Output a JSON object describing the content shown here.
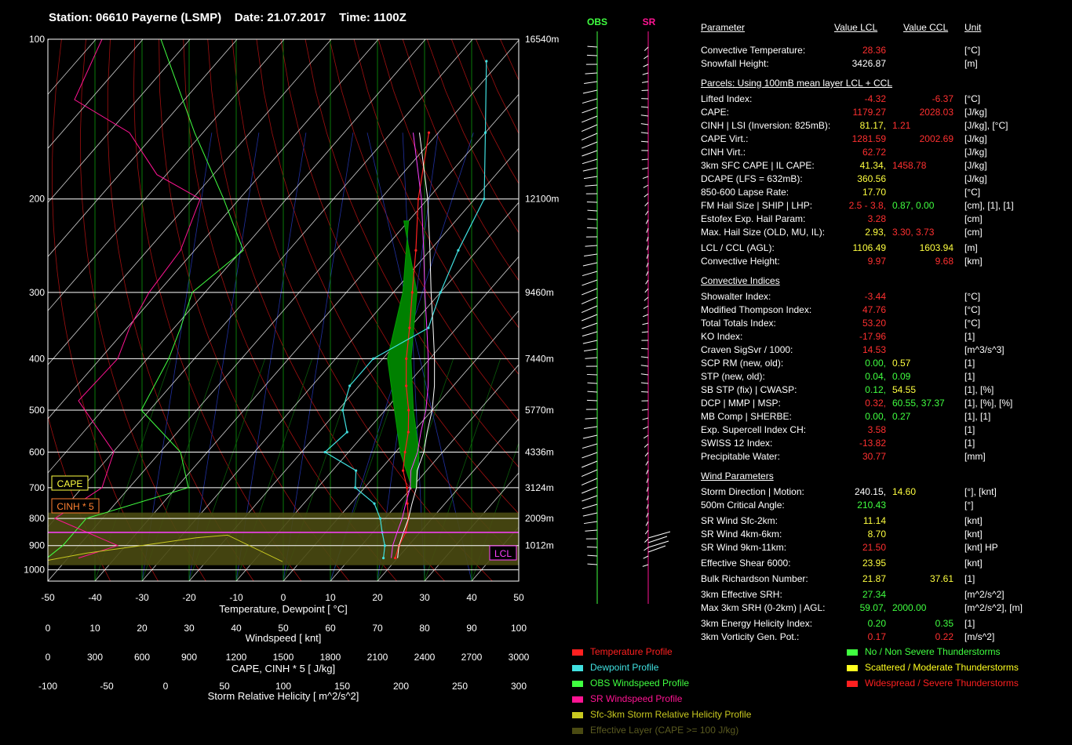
{
  "header": {
    "station": "Station: 06610 Payerne (LSMP)",
    "date": "Date: 21.07.2017",
    "time": "Time: 1100Z"
  },
  "chart_data": {
    "type": "line",
    "pressure_ticks": [
      100,
      200,
      300,
      400,
      500,
      600,
      700,
      800,
      900,
      1000
    ],
    "height_ticks": [
      "16540m",
      "12100m",
      "9460m",
      "7440m",
      "5770m",
      "4336m",
      "3124m",
      "2009m",
      "1012m"
    ],
    "height_pressures": [
      100,
      200,
      300,
      400,
      500,
      600,
      700,
      800,
      900
    ],
    "xlabel": "Temperature, Dewpoint [ °C]",
    "temp_ticks": [
      -50,
      -40,
      -30,
      -20,
      -10,
      0,
      10,
      20,
      30,
      40,
      50
    ],
    "wind_label": "Windspeed [ knt]",
    "wind_ticks": [
      0,
      10,
      20,
      30,
      40,
      50,
      60,
      70,
      80,
      90,
      100
    ],
    "cape_label": "CAPE, CINH * 5 [ J/kg]",
    "cape_ticks": [
      0,
      300,
      600,
      900,
      1200,
      1500,
      1800,
      2100,
      2400,
      2700,
      3000
    ],
    "srh_label": "Storm Relative Helicity [ m^2/s^2]",
    "srh_ticks": [
      -100,
      -50,
      0,
      50,
      100,
      150,
      200,
      250,
      300
    ],
    "box_labels": {
      "cape": "CAPE",
      "cinh": "CINH * 5",
      "lcl": "LCL"
    },
    "column_labels": {
      "obs": "OBS",
      "sr": "SR"
    },
    "series": [
      {
        "name": "Temperature Profile",
        "color": "#ff2020",
        "points": [
          [
            19.5,
            950
          ],
          [
            18,
            900
          ],
          [
            17,
            850
          ],
          [
            15,
            800
          ],
          [
            12,
            750
          ],
          [
            9,
            700
          ],
          [
            5,
            650
          ],
          [
            2,
            600
          ],
          [
            -1,
            550
          ],
          [
            -5,
            500
          ],
          [
            -10,
            450
          ],
          [
            -15,
            400
          ],
          [
            -20,
            350
          ],
          [
            -26,
            300
          ],
          [
            -33,
            250
          ],
          [
            -42,
            200
          ],
          [
            -52,
            150
          ]
        ]
      },
      {
        "name": "Dewpoint Profile",
        "color": "#40e0e0",
        "points": [
          [
            17,
            950
          ],
          [
            15,
            900
          ],
          [
            12,
            850
          ],
          [
            9,
            800
          ],
          [
            5,
            750
          ],
          [
            -2,
            700
          ],
          [
            -5,
            650
          ],
          [
            -15,
            600
          ],
          [
            -14,
            550
          ],
          [
            -19,
            500
          ],
          [
            -22,
            450
          ],
          [
            -22,
            400
          ],
          [
            -16,
            350
          ],
          [
            -20,
            300
          ],
          [
            -24,
            250
          ],
          [
            -28,
            200
          ],
          [
            -40,
            150
          ],
          [
            -53,
            110
          ]
        ]
      },
      {
        "name": "Parcel",
        "color": "#ffffff",
        "points": [
          [
            20,
            950
          ],
          [
            18,
            900
          ],
          [
            16.5,
            850
          ],
          [
            15,
            800
          ],
          [
            13,
            750
          ],
          [
            11,
            700
          ],
          [
            8,
            650
          ],
          [
            6,
            600
          ],
          [
            3,
            550
          ],
          [
            0,
            500
          ],
          [
            -4,
            450
          ],
          [
            -9,
            400
          ],
          [
            -15,
            350
          ],
          [
            -22,
            300
          ],
          [
            -30,
            250
          ],
          [
            -40,
            200
          ],
          [
            -54,
            150
          ]
        ]
      }
    ],
    "ylim": [
      1050,
      100
    ],
    "xlim": [
      -50,
      50
    ]
  },
  "params": {
    "headers": {
      "parameter": "Parameter",
      "lcl": "Value LCL",
      "ccl": "Value CCL",
      "unit": "Unit"
    },
    "rows": [
      {
        "label": "Convective Temperature:",
        "v1": "28.36",
        "c1": "#ff3030",
        "v2": "",
        "c2": "",
        "unit": "[°C]",
        "top": 29
      },
      {
        "label": "Snowfall Height:",
        "v1": "3426.87",
        "c1": "#ffffff",
        "v2": "",
        "c2": "",
        "unit": "[m]",
        "top": 46
      },
      {
        "label": "Lifted Index:",
        "v1": "-4.32",
        "c1": "#ff3030",
        "v2": "-6.37",
        "c2": "#ff3030",
        "unit": "[°C]",
        "top": 91
      },
      {
        "label": "CAPE:",
        "v1": "1179.27",
        "c1": "#ff3030",
        "v2": "2028.03",
        "c2": "#ff3030",
        "unit": "[J/kg]",
        "top": 108
      },
      {
        "label": "CINH | LSI (Inversion: 825mB):",
        "v1": "81.17,",
        "c1": "#ffff40",
        "v2": "1.21",
        "c2": "#ff3030",
        "unit": "[J/kg], [°C]",
        "top": 125,
        "inline": true
      },
      {
        "label": "CAPE Virt.:",
        "v1": "1281.59",
        "c1": "#ff3030",
        "v2": "2002.69",
        "c2": "#ff3030",
        "unit": "[J/kg]",
        "top": 142
      },
      {
        "label": "CINH Virt.:",
        "v1": "62.72",
        "c1": "#ff3030",
        "v2": "",
        "c2": "",
        "unit": "[J/kg]",
        "top": 159
      },
      {
        "label": "3km SFC CAPE | IL CAPE:",
        "v1": "41.34,",
        "c1": "#ffff40",
        "v2": "1458.78",
        "c2": "#ff3030",
        "unit": "[J/kg]",
        "top": 176,
        "inline": true
      },
      {
        "label": "DCAPE (LFS = 632mB):",
        "v1": "360.56",
        "c1": "#ffff40",
        "v2": "",
        "c2": "",
        "unit": "[J/kg]",
        "top": 193
      },
      {
        "label": "850-600 Lapse Rate:",
        "v1": "17.70",
        "c1": "#ffff40",
        "v2": "",
        "c2": "",
        "unit": "[°C]",
        "top": 210
      },
      {
        "label": "FM Hail Size | SHIP | LHP:",
        "v1": "2.5 - 3.8,",
        "c1": "#ff3030",
        "v2": "0.87,  0.00",
        "c2": "#40ff40",
        "unit": "[cm], [1], [1]",
        "top": 227,
        "inline": true
      },
      {
        "label": "Estofex Exp. Hail Param:",
        "v1": "3.28",
        "c1": "#ff3030",
        "v2": "",
        "c2": "",
        "unit": "[cm]",
        "top": 244
      },
      {
        "label": "Max. Hail Size (OLD, MU, IL):",
        "v1": "2.93,",
        "c1": "#ffff40",
        "v2": "3.30,  3.73",
        "c2": "#ff3030",
        "unit": "[cm]",
        "top": 261,
        "inline": true
      },
      {
        "label": "LCL / CCL (AGL):",
        "v1": "1106.49",
        "c1": "#ffff40",
        "v2": "1603.94",
        "c2": "#ffff40",
        "unit": "[m]",
        "top": 281
      },
      {
        "label": "Convective Height:",
        "v1": "9.97",
        "c1": "#ff3030",
        "v2": "9.68",
        "c2": "#ff3030",
        "unit": "[km]",
        "top": 298
      },
      {
        "label": "Showalter Index:",
        "v1": "-3.44",
        "c1": "#ff3030",
        "v2": "",
        "c2": "",
        "unit": "[°C]",
        "top": 343
      },
      {
        "label": "Modified Thompson Index:",
        "v1": "47.76",
        "c1": "#ff3030",
        "v2": "",
        "c2": "",
        "unit": "[°C]",
        "top": 360
      },
      {
        "label": "Total Totals Index:",
        "v1": "53.20",
        "c1": "#ff3030",
        "v2": "",
        "c2": "",
        "unit": "[°C]",
        "top": 377
      },
      {
        "label": "KO Index:",
        "v1": "-17.96",
        "c1": "#ff3030",
        "v2": "",
        "c2": "",
        "unit": "[1]",
        "top": 394
      },
      {
        "label": "Craven SigSvr / 1000:",
        "v1": "14.53",
        "c1": "#ff3030",
        "v2": "",
        "c2": "",
        "unit": "[m^3/s^3]",
        "top": 411
      },
      {
        "label": "SCP RM (new, old):",
        "v1": "0.00,",
        "c1": "#40ff40",
        "v2": "0.57",
        "c2": "#ffff40",
        "unit": "[1]",
        "top": 428,
        "inline": true
      },
      {
        "label": "STP (new, old):",
        "v1": "0.04,",
        "c1": "#40ff40",
        "v2": "0.09",
        "c2": "#40ff40",
        "unit": "[1]",
        "top": 445,
        "inline": true
      },
      {
        "label": "SB STP (fix) | CWASP:",
        "v1": "0.12,",
        "c1": "#40ff40",
        "v2": "54.55",
        "c2": "#ffff40",
        "unit": "[1], [%]",
        "top": 462,
        "inline": true
      },
      {
        "label": "DCP | MMP | MSP:",
        "v1": "0.32,",
        "c1": "#ff3030",
        "v2": "60.55,  37.37",
        "c2": "#40ff40",
        "unit": "[1], [%], [%]",
        "top": 479,
        "inline": true
      },
      {
        "label": "MB Comp | SHERBE:",
        "v1": "0.00,",
        "c1": "#40ff40",
        "v2": "0.27",
        "c2": "#40ff40",
        "unit": "[1], [1]",
        "top": 496,
        "inline": true
      },
      {
        "label": "Exp. Supercell Index CH:",
        "v1": "3.58",
        "c1": "#ff3030",
        "v2": "",
        "c2": "",
        "unit": "[1]",
        "top": 513
      },
      {
        "label": "SWISS 12 Index:",
        "v1": "-13.82",
        "c1": "#ff3030",
        "v2": "",
        "c2": "",
        "unit": "[1]",
        "top": 530
      },
      {
        "label": "Precipitable Water:",
        "v1": "30.77",
        "c1": "#ff3030",
        "v2": "",
        "c2": "",
        "unit": "[mm]",
        "top": 547
      },
      {
        "label": "Storm Direction | Motion:",
        "v1": "240.15,",
        "c1": "#ffffff",
        "v2": "14.60",
        "c2": "#ffff40",
        "unit": "[°], [knt]",
        "top": 592,
        "inline": true
      },
      {
        "label": "500m Critical Angle:",
        "v1": "210.43",
        "c1": "#40ff40",
        "v2": "",
        "c2": "",
        "unit": "[°]",
        "top": 609
      },
      {
        "label": "SR Wind Sfc-2km:",
        "v1": "11.14",
        "c1": "#ffff40",
        "v2": "",
        "c2": "",
        "unit": "[knt]",
        "top": 629
      },
      {
        "label": "SR Wind 4km-6km:",
        "v1": "8.70",
        "c1": "#ffff40",
        "v2": "",
        "c2": "",
        "unit": "[knt]",
        "top": 646
      },
      {
        "label": "SR Wind 9km-11km:",
        "v1": "21.50",
        "c1": "#ff3030",
        "v2": "",
        "c2": "",
        "unit": "[knt] HP",
        "top": 663
      },
      {
        "label": "Effective Shear 6000:",
        "v1": "23.95",
        "c1": "#ffff40",
        "v2": "",
        "c2": "",
        "unit": "[knt]",
        "top": 683
      },
      {
        "label": "Bulk Richardson Number:",
        "v1": "21.87",
        "c1": "#ffff40",
        "v2": "37.61",
        "c2": "#ffff40",
        "unit": "[1]",
        "top": 703
      },
      {
        "label": "3km Effective SRH:",
        "v1": "27.34",
        "c1": "#40ff40",
        "v2": "",
        "c2": "",
        "unit": "[m^2/s^2]",
        "top": 723
      },
      {
        "label": "Max 3km SRH (0-2km) | AGL:",
        "v1": "59.07,",
        "c1": "#40ff40",
        "v2": "2000.00",
        "c2": "#40ff40",
        "unit": "[m^2/s^2], [m]",
        "top": 740,
        "inline": true
      },
      {
        "label": "3km Energy Helicity Index:",
        "v1": "0.20",
        "c1": "#40ff40",
        "v2": "0.35",
        "c2": "#40ff40",
        "unit": "[1]",
        "top": 760
      },
      {
        "label": "3km Vorticity Gen. Pot.:",
        "v1": "0.17",
        "c1": "#ff3030",
        "v2": "0.22",
        "c2": "#ff3030",
        "unit": "[m/s^2]",
        "top": 777
      }
    ],
    "sections": [
      {
        "label": "Parcels: Using 100mB mean layer LCL + CCL",
        "top": 71
      },
      {
        "label": "Convective Indices",
        "top": 323
      },
      {
        "label": "Wind Parameters",
        "top": 572
      }
    ]
  },
  "legend": [
    {
      "label": "Temperature Profile",
      "color": "#ff2020",
      "text_color": "#ff2020"
    },
    {
      "label": "Dewpoint Profile",
      "color": "#40e0e0",
      "text_color": "#40e0e0"
    },
    {
      "label": "OBS Windspeed Profile",
      "color": "#40ff40",
      "text_color": "#40ff40"
    },
    {
      "label": "SR Windspeed Profile",
      "color": "#ff1493",
      "text_color": "#ff1493"
    },
    {
      "label": "Sfc-3km Storm Relative Helicity Profile",
      "color": "#c8c820",
      "text_color": "#c8c820"
    },
    {
      "label": "Effective Layer (CAPE >= 100 J/kg)",
      "color": "#4a4a12",
      "text_color": "#5a5a20"
    }
  ],
  "threat_legend": [
    {
      "label": "No / Non Severe Thunderstorms",
      "color": "#40ff40"
    },
    {
      "label": "Scattered / Moderate Thunderstorms",
      "color": "#ffff20"
    },
    {
      "label": "Widespread / Severe Thunderstorms",
      "color": "#ff2020"
    }
  ]
}
